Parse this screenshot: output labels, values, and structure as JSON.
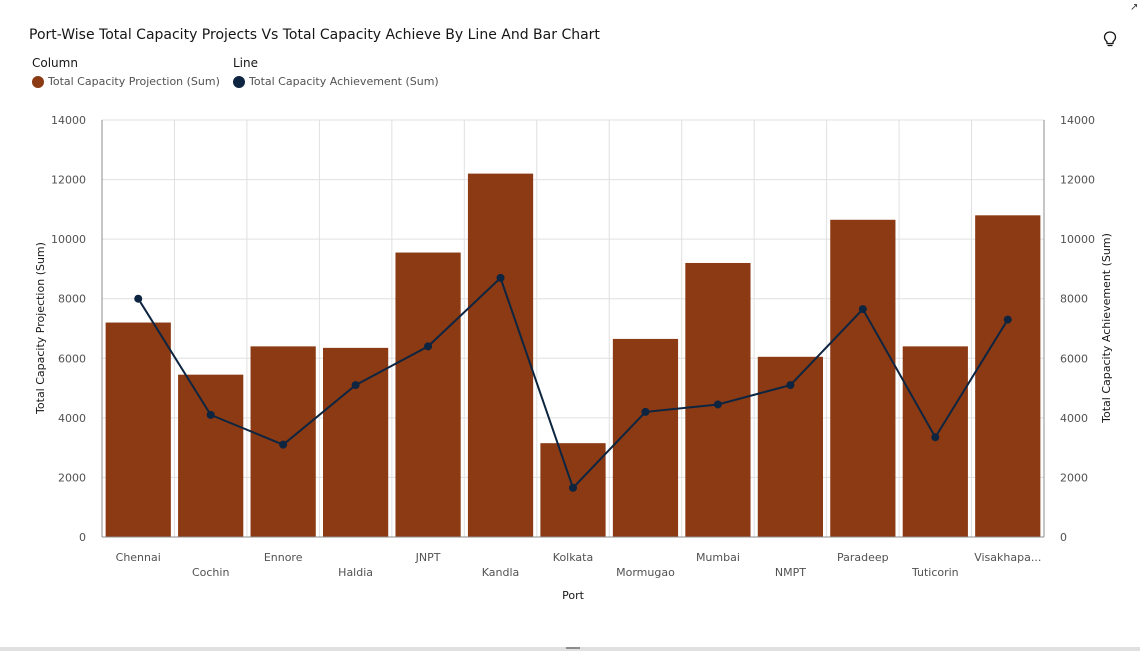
{
  "title": "Port-Wise Total Capacity Projects Vs Total Capacity Achieve By Line And Bar Chart",
  "icons": {
    "insights": "lightbulb-icon",
    "expand": "expand-icon"
  },
  "legend": {
    "column_heading": "Column",
    "line_heading": "Line",
    "column_label": "Total Capacity Projection (Sum)",
    "line_label": "Total Capacity Achievement (Sum)"
  },
  "colors": {
    "bar": "#8b3a13",
    "line": "#0d2540",
    "grid": "#e0e0e0",
    "axis": "#8d8d8d"
  },
  "chart_data": {
    "type": "bar",
    "combo_line": true,
    "xlabel": "Port",
    "ylabel": "Total Capacity Projection (Sum)",
    "y2label": "Total Capacity Achievement (Sum)",
    "ylim": [
      0,
      14000
    ],
    "y2lim": [
      0,
      14000
    ],
    "yticks": [
      0,
      2000,
      4000,
      6000,
      8000,
      10000,
      12000,
      14000
    ],
    "grid": true,
    "legend_position": "top-left",
    "categories": [
      "Chennai",
      "Cochin",
      "Ennore",
      "Haldia",
      "JNPT",
      "Kandla",
      "Kolkata",
      "Mormugao",
      "Mumbai",
      "NMPT",
      "Paradeep",
      "Tuticorin",
      "Visakhapa..."
    ],
    "series": [
      {
        "name": "Total Capacity Projection (Sum)",
        "type": "bar",
        "values": [
          7200,
          5450,
          6400,
          6350,
          9550,
          12200,
          3150,
          6650,
          9200,
          6050,
          10650,
          6400,
          10800
        ]
      },
      {
        "name": "Total Capacity Achievement (Sum)",
        "type": "line",
        "values": [
          8000,
          4100,
          3100,
          5100,
          6400,
          8700,
          1650,
          4200,
          4450,
          5100,
          7650,
          3350,
          7300
        ]
      }
    ]
  }
}
